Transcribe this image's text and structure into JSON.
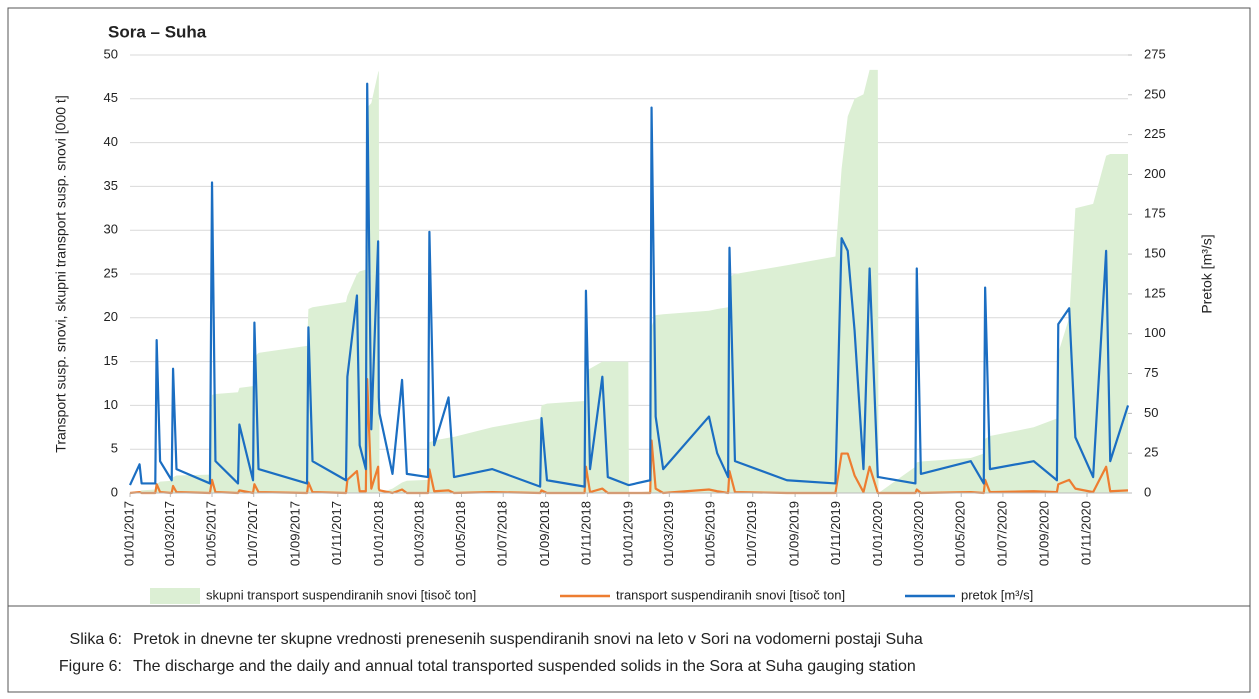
{
  "chart_data": {
    "type": "line",
    "title": "Sora – Suha",
    "y_label": "Transport susp. snovi,  skupni transport susp. snovi [000 t]",
    "y2_label": "Pretok [m³/s]",
    "xlim": [
      "2017-01-01",
      "2020-12-31"
    ],
    "xticks": [
      {
        "value": "2017-01-01",
        "label": "01/01/2017"
      },
      {
        "value": "2017-03-01",
        "label": "01/03/2017"
      },
      {
        "value": "2017-05-01",
        "label": "01/05/2017"
      },
      {
        "value": "2017-07-01",
        "label": "01/07/2017"
      },
      {
        "value": "2017-09-01",
        "label": "01/09/2017"
      },
      {
        "value": "2017-11-01",
        "label": "01/11/2017"
      },
      {
        "value": "2018-01-01",
        "label": "01/01/2018"
      },
      {
        "value": "2018-03-01",
        "label": "01/03/2018"
      },
      {
        "value": "2018-05-01",
        "label": "01/05/2018"
      },
      {
        "value": "2018-07-01",
        "label": "01/07/2018"
      },
      {
        "value": "2018-09-01",
        "label": "01/09/2018"
      },
      {
        "value": "2018-11-01",
        "label": "01/11/2018"
      },
      {
        "value": "2019-01-01",
        "label": "01/01/2019"
      },
      {
        "value": "2019-03-01",
        "label": "01/03/2019"
      },
      {
        "value": "2019-05-01",
        "label": "01/05/2019"
      },
      {
        "value": "2019-07-01",
        "label": "01/07/2019"
      },
      {
        "value": "2019-09-01",
        "label": "01/09/2019"
      },
      {
        "value": "2019-11-01",
        "label": "01/11/2019"
      },
      {
        "value": "2020-01-01",
        "label": "01/01/2020"
      },
      {
        "value": "2020-03-01",
        "label": "01/03/2020"
      },
      {
        "value": "2020-05-01",
        "label": "01/05/2020"
      },
      {
        "value": "2020-07-01",
        "label": "01/07/2020"
      },
      {
        "value": "2020-09-01",
        "label": "01/09/2020"
      },
      {
        "value": "2020-11-01",
        "label": "01/11/2020"
      }
    ],
    "ylim": [
      0,
      50
    ],
    "yticks": [
      0,
      5,
      10,
      15,
      20,
      25,
      30,
      35,
      40,
      45,
      50
    ],
    "y2lim": [
      0,
      275
    ],
    "y2ticks": [
      0,
      25,
      50,
      75,
      100,
      125,
      150,
      175,
      200,
      225,
      250,
      275
    ],
    "grid": true,
    "x": [
      "2017-01-01",
      "2017-01-15",
      "2017-01-18",
      "2017-02-07",
      "2017-02-09",
      "2017-02-14",
      "2017-03-03",
      "2017-03-05",
      "2017-03-10",
      "2017-04-28",
      "2017-05-01",
      "2017-05-06",
      "2017-06-08",
      "2017-06-10",
      "2017-06-30",
      "2017-07-02",
      "2017-07-08",
      "2017-09-17",
      "2017-09-19",
      "2017-09-25",
      "2017-11-13",
      "2017-11-15",
      "2017-11-29",
      "2017-12-03",
      "2017-12-12",
      "2017-12-14",
      "2017-12-20",
      "2017-12-30",
      "2017-12-31",
      "2018-01-01",
      "2018-01-20",
      "2018-02-03",
      "2018-02-10",
      "2018-03-13",
      "2018-03-15",
      "2018-03-22",
      "2018-04-12",
      "2018-04-20",
      "2018-06-15",
      "2018-08-24",
      "2018-08-26",
      "2018-09-03",
      "2018-10-28",
      "2018-10-30",
      "2018-11-05",
      "2018-11-23",
      "2018-12-01",
      "2018-12-31",
      "2019-01-01",
      "2019-02-01",
      "2019-02-03",
      "2019-02-09",
      "2019-02-20",
      "2019-04-28",
      "2019-05-10",
      "2019-05-26",
      "2019-05-28",
      "2019-06-05",
      "2019-08-20",
      "2019-10-30",
      "2019-11-08",
      "2019-11-17",
      "2019-11-27",
      "2019-12-10",
      "2019-12-19",
      "2019-12-31",
      "2020-01-01",
      "2020-02-24",
      "2020-02-26",
      "2020-03-03",
      "2020-05-15",
      "2020-06-03",
      "2020-06-05",
      "2020-06-12",
      "2020-08-15",
      "2020-09-18",
      "2020-09-20",
      "2020-10-06",
      "2020-10-15",
      "2020-11-10",
      "2020-11-29",
      "2020-12-05",
      "2020-12-31"
    ],
    "series": [
      {
        "name": "skupni transport suspendiranih snovi [tisoč ton]",
        "type": "area",
        "axis": "y",
        "color": "#dcefd4",
        "values": [
          0,
          0.2,
          0.3,
          0.4,
          1.0,
          1.3,
          1.4,
          1.8,
          2.0,
          2.1,
          11.2,
          11.3,
          11.5,
          12,
          12.2,
          15.5,
          16,
          16.8,
          21,
          21.2,
          21.8,
          22.5,
          25,
          25.3,
          25.5,
          44,
          44.5,
          48,
          48.2,
          0,
          0.5,
          1.2,
          1.4,
          1.5,
          5.8,
          6.0,
          6.3,
          6.4,
          7.5,
          8.5,
          10,
          10.2,
          10.5,
          14,
          14.2,
          15,
          15,
          15,
          0,
          0.2,
          19,
          20.3,
          20.4,
          20.8,
          21,
          21.2,
          24.7,
          25,
          26,
          27,
          37,
          43,
          45,
          45.5,
          48.3,
          48.3,
          0,
          3.0,
          3.5,
          3.6,
          4,
          4.5,
          6.2,
          6.5,
          7.5,
          8.5,
          16,
          20,
          32.5,
          33,
          38.5,
          38.7,
          38.7
        ]
      },
      {
        "name": "transport suspendiranih snovi [tisoč ton]",
        "type": "line",
        "axis": "y",
        "color": "#ed7d31",
        "values": [
          0,
          0.1,
          0,
          0,
          1.0,
          0.1,
          0,
          0.8,
          0.1,
          0,
          1.5,
          0.1,
          0,
          0.3,
          0,
          1.0,
          0.1,
          0,
          1.2,
          0.1,
          0,
          1.5,
          2.5,
          0.2,
          0.2,
          13,
          0.5,
          3,
          0.5,
          0.3,
          0,
          0.4,
          0,
          0,
          2.7,
          0.2,
          0.3,
          0,
          0.1,
          0,
          0.3,
          0,
          0,
          3,
          0.1,
          0.5,
          0,
          0,
          0,
          0,
          6,
          0.5,
          0,
          0.4,
          0.2,
          0,
          2.5,
          0.1,
          0,
          0,
          4.5,
          4.5,
          2,
          0.1,
          3,
          0,
          0,
          0,
          0.4,
          0,
          0.1,
          0,
          1.5,
          0.1,
          0.2,
          0.1,
          1.0,
          1.5,
          0.5,
          0.1,
          3,
          0.2,
          0.3
        ]
      },
      {
        "name": "pretok  [m³/s]",
        "type": "line",
        "axis": "y2",
        "color": "#1b6ec2",
        "values": [
          5,
          18,
          6,
          6,
          96,
          20,
          8,
          78,
          15,
          6,
          195,
          20,
          6,
          43,
          8,
          107,
          15,
          6,
          104,
          20,
          8,
          73,
          124,
          30,
          15,
          257,
          40,
          158,
          60,
          50,
          12,
          71,
          12,
          10,
          164,
          30,
          60,
          10,
          15,
          4,
          47,
          8,
          4,
          127,
          15,
          73,
          10,
          5,
          5,
          8,
          242,
          48,
          15,
          48,
          25,
          10,
          154,
          20,
          8,
          6,
          160,
          152,
          102,
          15,
          141,
          10,
          10,
          6,
          141,
          12,
          20,
          6,
          129,
          15,
          20,
          8,
          106,
          116,
          35,
          10,
          152,
          20,
          55
        ]
      }
    ]
  },
  "caption": {
    "lines": [
      {
        "label": "Slika 6:",
        "text": "Pretok in dnevne ter skupne vrednosti prenesenih suspendiranih snovi na leto v Sori na vodomerni postaji Suha"
      },
      {
        "label": "Figure 6:",
        "text": "The discharge and the daily and annual total transported suspended solids in the Sora at Suha gauging station"
      }
    ]
  }
}
